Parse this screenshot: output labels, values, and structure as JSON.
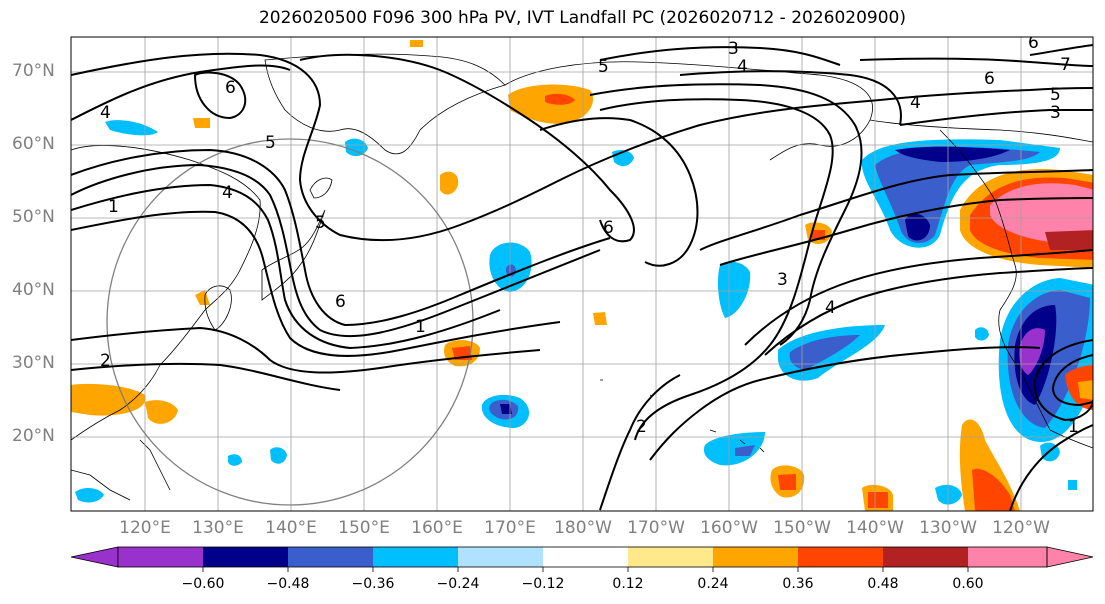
{
  "title": "2026020500 F096 300 hPa PV, IVT Landfall PC (2026020712 - 2026020900)",
  "map": {
    "lat_labels": [
      "70°N",
      "60°N",
      "50°N",
      "40°N",
      "30°N",
      "20°N"
    ],
    "lon_labels": [
      "120°E",
      "130°E",
      "140°E",
      "150°E",
      "160°E",
      "170°E",
      "180°W",
      "170°W",
      "160°W",
      "150°W",
      "140°W",
      "130°W",
      "120°W"
    ],
    "contour_labels": [
      "3",
      "5",
      "4",
      "6",
      "4",
      "3",
      "5",
      "7",
      "4",
      "6",
      "5",
      "1",
      "4",
      "5",
      "6",
      "6",
      "1",
      "3",
      "4",
      "2",
      "2",
      "1",
      "6",
      "3",
      "2"
    ]
  },
  "colorbar": {
    "ticks": [
      "−0.60",
      "−0.48",
      "−0.36",
      "−0.24",
      "−0.12",
      "0.12",
      "0.24",
      "0.36",
      "0.48",
      "0.60"
    ],
    "colors": [
      "#9932cc",
      "#00008b",
      "#3a5fcd",
      "#00bfff",
      "#b0e2ff",
      "#ffffff",
      "#ffe98a",
      "#ffa500",
      "#ff4500",
      "#b22222",
      "#ff82ab"
    ]
  }
}
